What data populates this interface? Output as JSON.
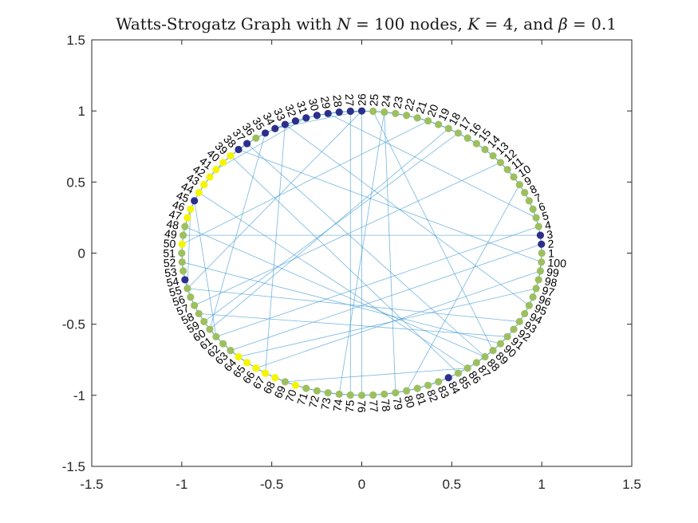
{
  "chart_data": {
    "type": "network",
    "title": "Watts-Strogatz Graph with N = 100 nodes, K = 4, and β = 0.1",
    "xlim": [
      -1.5,
      1.5
    ],
    "ylim": [
      -1.5,
      1.5
    ],
    "xticks": [
      "-1.5",
      "-1",
      "-0.5",
      "0",
      "0.5",
      "1",
      "1.5"
    ],
    "yticks": [
      "1.5",
      "1",
      "0.5",
      "0",
      "-0.5",
      "-1",
      "-1.5"
    ],
    "box": true,
    "grid": false,
    "layout": "circle",
    "node_count": 100,
    "node_labels": [
      "1",
      "2",
      "3",
      "4",
      "5",
      "6",
      "7",
      "8",
      "9",
      "10",
      "11",
      "12",
      "13",
      "14",
      "15",
      "16",
      "17",
      "18",
      "19",
      "20",
      "21",
      "22",
      "23",
      "24",
      "25",
      "26",
      "27",
      "28",
      "29",
      "30",
      "31",
      "32",
      "33",
      "34",
      "35",
      "36",
      "37",
      "38",
      "39",
      "40",
      "41",
      "42",
      "43",
      "44",
      "45",
      "46",
      "47",
      "48",
      "49",
      "50",
      "51",
      "52",
      "53",
      "54",
      "55",
      "56",
      "57",
      "58",
      "59",
      "60",
      "61",
      "62",
      "63",
      "64",
      "65",
      "66",
      "67",
      "68",
      "69",
      "70",
      "71",
      "72",
      "73",
      "74",
      "75",
      "76",
      "77",
      "78",
      "79",
      "80",
      "81",
      "82",
      "83",
      "84",
      "85",
      "86",
      "87",
      "88",
      "89",
      "90",
      "91",
      "92",
      "93",
      "94",
      "95",
      "96",
      "97",
      "98",
      "99",
      "100"
    ],
    "node_colors": {
      "dark": [
        2,
        3,
        26,
        27,
        28,
        29,
        30,
        31,
        32,
        33,
        34,
        35,
        37,
        38,
        45,
        54,
        84
      ],
      "yellow": [
        39,
        40,
        41,
        42,
        43,
        44,
        46,
        47,
        50,
        64,
        65,
        66,
        67,
        68,
        70
      ],
      "default": "green"
    },
    "palette": {
      "dark": "#2e2e8b",
      "yellow": "#f5f500",
      "green": "#9dbf5f",
      "edge": "#4a9fd4"
    },
    "edges": [
      [
        1,
        2
      ],
      [
        1,
        3
      ],
      [
        1,
        99
      ],
      [
        1,
        98
      ],
      [
        2,
        3
      ],
      [
        2,
        4
      ],
      [
        2,
        100
      ],
      [
        3,
        4
      ],
      [
        3,
        5
      ],
      [
        4,
        5
      ],
      [
        4,
        6
      ],
      [
        5,
        6
      ],
      [
        5,
        7
      ],
      [
        6,
        7
      ],
      [
        6,
        8
      ],
      [
        7,
        8
      ],
      [
        7,
        9
      ],
      [
        8,
        9
      ],
      [
        8,
        10
      ],
      [
        9,
        10
      ],
      [
        9,
        11
      ],
      [
        10,
        11
      ],
      [
        10,
        12
      ],
      [
        11,
        12
      ],
      [
        11,
        13
      ],
      [
        12,
        13
      ],
      [
        12,
        14
      ],
      [
        13,
        14
      ],
      [
        13,
        15
      ],
      [
        14,
        15
      ],
      [
        14,
        16
      ],
      [
        15,
        16
      ],
      [
        15,
        17
      ],
      [
        16,
        17
      ],
      [
        16,
        18
      ],
      [
        17,
        18
      ],
      [
        17,
        19
      ],
      [
        18,
        19
      ],
      [
        18,
        20
      ],
      [
        19,
        20
      ],
      [
        19,
        21
      ],
      [
        20,
        21
      ],
      [
        20,
        22
      ],
      [
        21,
        22
      ],
      [
        21,
        23
      ],
      [
        22,
        23
      ],
      [
        22,
        24
      ],
      [
        23,
        24
      ],
      [
        23,
        25
      ],
      [
        24,
        25
      ],
      [
        24,
        26
      ],
      [
        25,
        26
      ],
      [
        25,
        27
      ],
      [
        26,
        27
      ],
      [
        26,
        28
      ],
      [
        27,
        28
      ],
      [
        27,
        29
      ],
      [
        28,
        29
      ],
      [
        28,
        30
      ],
      [
        29,
        30
      ],
      [
        29,
        31
      ],
      [
        30,
        31
      ],
      [
        30,
        32
      ],
      [
        31,
        32
      ],
      [
        31,
        33
      ],
      [
        32,
        33
      ],
      [
        32,
        34
      ],
      [
        33,
        34
      ],
      [
        33,
        35
      ],
      [
        34,
        35
      ],
      [
        34,
        36
      ],
      [
        35,
        36
      ],
      [
        35,
        37
      ],
      [
        36,
        37
      ],
      [
        36,
        38
      ],
      [
        37,
        38
      ],
      [
        37,
        39
      ],
      [
        38,
        39
      ],
      [
        38,
        40
      ],
      [
        39,
        40
      ],
      [
        39,
        41
      ],
      [
        40,
        41
      ],
      [
        40,
        42
      ],
      [
        41,
        42
      ],
      [
        41,
        43
      ],
      [
        42,
        43
      ],
      [
        42,
        44
      ],
      [
        43,
        44
      ],
      [
        43,
        45
      ],
      [
        44,
        45
      ],
      [
        44,
        46
      ],
      [
        45,
        46
      ],
      [
        45,
        47
      ],
      [
        46,
        47
      ],
      [
        46,
        48
      ],
      [
        47,
        48
      ],
      [
        47,
        49
      ],
      [
        48,
        49
      ],
      [
        48,
        50
      ],
      [
        49,
        50
      ],
      [
        49,
        51
      ],
      [
        50,
        51
      ],
      [
        50,
        52
      ],
      [
        51,
        52
      ],
      [
        51,
        53
      ],
      [
        52,
        53
      ],
      [
        52,
        54
      ],
      [
        53,
        54
      ],
      [
        53,
        55
      ],
      [
        54,
        55
      ],
      [
        54,
        56
      ],
      [
        55,
        56
      ],
      [
        55,
        57
      ],
      [
        56,
        57
      ],
      [
        56,
        58
      ],
      [
        57,
        58
      ],
      [
        57,
        59
      ],
      [
        58,
        59
      ],
      [
        58,
        60
      ],
      [
        59,
        60
      ],
      [
        59,
        61
      ],
      [
        60,
        61
      ],
      [
        60,
        62
      ],
      [
        61,
        62
      ],
      [
        61,
        63
      ],
      [
        62,
        63
      ],
      [
        62,
        64
      ],
      [
        63,
        64
      ],
      [
        63,
        65
      ],
      [
        64,
        65
      ],
      [
        64,
        66
      ],
      [
        65,
        66
      ],
      [
        65,
        67
      ],
      [
        66,
        67
      ],
      [
        66,
        68
      ],
      [
        67,
        68
      ],
      [
        67,
        69
      ],
      [
        68,
        69
      ],
      [
        68,
        70
      ],
      [
        69,
        70
      ],
      [
        69,
        71
      ],
      [
        70,
        71
      ],
      [
        70,
        72
      ],
      [
        71,
        72
      ],
      [
        71,
        73
      ],
      [
        72,
        73
      ],
      [
        72,
        74
      ],
      [
        73,
        74
      ],
      [
        73,
        75
      ],
      [
        74,
        75
      ],
      [
        74,
        76
      ],
      [
        75,
        76
      ],
      [
        75,
        77
      ],
      [
        76,
        77
      ],
      [
        76,
        78
      ],
      [
        77,
        78
      ],
      [
        77,
        79
      ],
      [
        78,
        79
      ],
      [
        78,
        80
      ],
      [
        79,
        80
      ],
      [
        79,
        81
      ],
      [
        80,
        81
      ],
      [
        80,
        82
      ],
      [
        81,
        82
      ],
      [
        81,
        83
      ],
      [
        82,
        83
      ],
      [
        82,
        84
      ],
      [
        83,
        84
      ],
      [
        83,
        85
      ],
      [
        84,
        85
      ],
      [
        84,
        86
      ],
      [
        85,
        86
      ],
      [
        85,
        87
      ],
      [
        86,
        87
      ],
      [
        86,
        88
      ],
      [
        87,
        88
      ],
      [
        87,
        89
      ],
      [
        88,
        89
      ],
      [
        88,
        90
      ],
      [
        89,
        90
      ],
      [
        89,
        91
      ],
      [
        90,
        91
      ],
      [
        90,
        92
      ],
      [
        91,
        92
      ],
      [
        91,
        93
      ],
      [
        92,
        93
      ],
      [
        92,
        94
      ],
      [
        93,
        94
      ],
      [
        93,
        95
      ],
      [
        94,
        95
      ],
      [
        94,
        96
      ],
      [
        95,
        96
      ],
      [
        95,
        97
      ],
      [
        96,
        97
      ],
      [
        96,
        98
      ],
      [
        97,
        98
      ],
      [
        97,
        99
      ],
      [
        98,
        99
      ],
      [
        98,
        100
      ],
      [
        99,
        100
      ],
      [
        26,
        34
      ],
      [
        26,
        76
      ],
      [
        26,
        55
      ],
      [
        27,
        75
      ],
      [
        25,
        89
      ],
      [
        24,
        74
      ],
      [
        24,
        79
      ],
      [
        33,
        95
      ],
      [
        37,
        88
      ],
      [
        33,
        67
      ],
      [
        35,
        60
      ],
      [
        44,
        86
      ],
      [
        48,
        88
      ],
      [
        38,
        100
      ],
      [
        61,
        4
      ],
      [
        52,
        90
      ],
      [
        55,
        93
      ],
      [
        59,
        17
      ],
      [
        63,
        2
      ],
      [
        57,
        12
      ],
      [
        49,
        3
      ],
      [
        66,
        99
      ],
      [
        58,
        91
      ],
      [
        69,
        86
      ],
      [
        80,
        9
      ],
      [
        64,
        97
      ],
      [
        50,
        20
      ],
      [
        31,
        41
      ],
      [
        39,
        85
      ],
      [
        45,
        61
      ],
      [
        18,
        60
      ],
      [
        46,
        55
      ],
      [
        29,
        5
      ]
    ]
  }
}
